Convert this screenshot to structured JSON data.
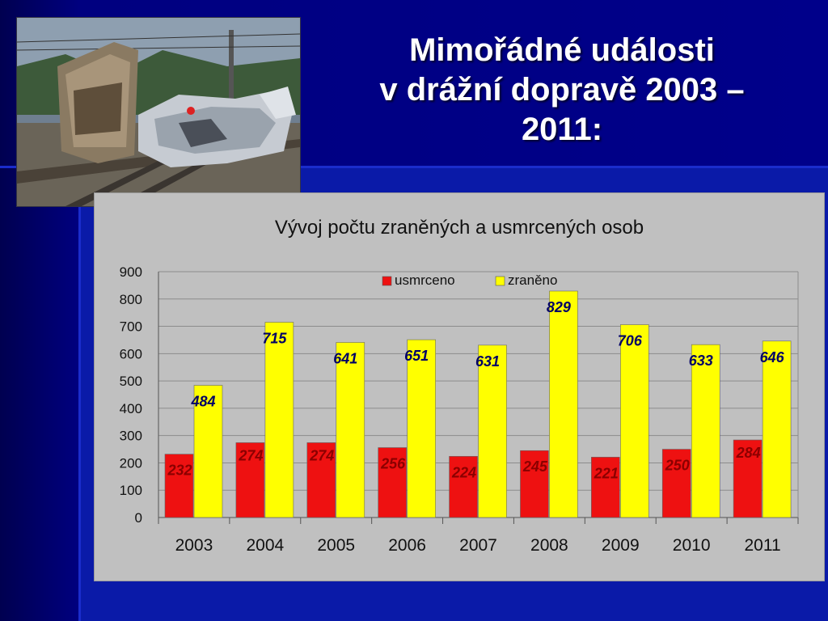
{
  "slide": {
    "title_line1": "Mimořádné události",
    "title_line2": "v drážní dopravě 2003 –",
    "title_line3": "2011:"
  },
  "photo": {
    "alt": "Train collision with a crushed silver car on the tracks"
  },
  "colors": {
    "usmrceno": "#ee1111",
    "zraneno": "#ffff00",
    "label_usmrceno": "#8b0000",
    "label_zraneno": "#000066",
    "plot_bg": "#c0c0c0"
  },
  "chart_data": {
    "type": "bar",
    "title": "Vývoj počtu zraněných a usmrcených osob",
    "categories": [
      "2003",
      "2004",
      "2005",
      "2006",
      "2007",
      "2008",
      "2009",
      "2010",
      "2011"
    ],
    "series": [
      {
        "name": "usmrceno",
        "values": [
          232,
          274,
          274,
          256,
          224,
          245,
          221,
          250,
          284
        ]
      },
      {
        "name": "zraněno",
        "values": [
          484,
          715,
          641,
          651,
          631,
          829,
          706,
          633,
          646
        ]
      }
    ],
    "ylim": [
      0,
      900
    ],
    "yticks": [
      0,
      100,
      200,
      300,
      400,
      500,
      600,
      700,
      800,
      900
    ],
    "grid": true,
    "legend": "top-center"
  }
}
